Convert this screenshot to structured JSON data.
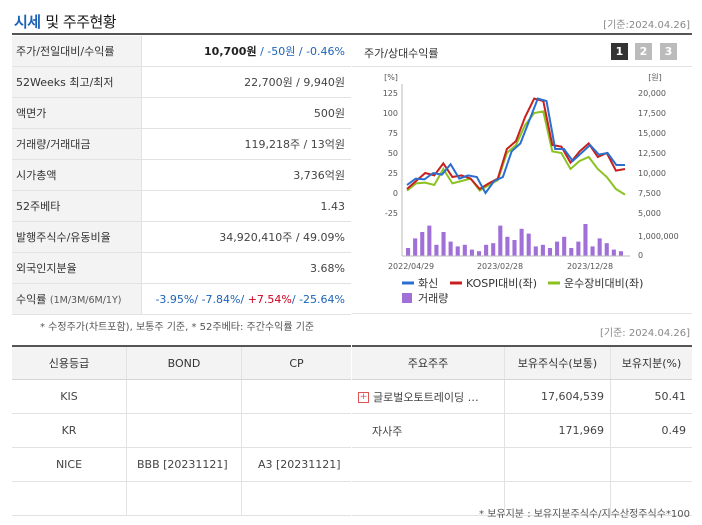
{
  "header": {
    "title_main": "시세",
    "title_rest": "및 주주현황",
    "date": "[기준:2024.04.26]"
  },
  "quote_table": [
    {
      "label": "주가/전일대비/수익률",
      "value_main": "10,700원",
      "value_change": " / -50원 / -0.46%"
    },
    {
      "label": "52Weeks 최고/최저",
      "value": "22,700원 / 9,940원"
    },
    {
      "label": "액면가",
      "value": "500원"
    },
    {
      "label": "거래량/거래대금",
      "value": "119,218주 / 13억원"
    },
    {
      "label": "시가총액",
      "value": "3,736억원"
    },
    {
      "label": "52주베타",
      "value": "1.43"
    },
    {
      "label": "발행주식수/유동비율",
      "value": "34,920,410주 / 49.09%"
    },
    {
      "label": "외국인지분율",
      "value": "3.68%"
    },
    {
      "label": "수익률",
      "label_small": "(1M/3M/6M/1Y)",
      "r1": "-3.95%",
      "r2": "-7.84%",
      "r3": "+7.54%",
      "r4": "-25.64%"
    }
  ],
  "note_left": "* 수정주가(차트포함), 보통주 기준, * 52주베타: 주간수익률 기준",
  "chart_panel": {
    "title": "주가/상대수익률",
    "pages": [
      "1",
      "2",
      "3"
    ],
    "active_page": "1"
  },
  "chart_data": {
    "type": "line",
    "left_unit": "[%]",
    "right_unit": "[원]",
    "left_ticks": [
      "125",
      "100",
      "75",
      "50",
      "25",
      "0",
      "-25"
    ],
    "right_ticks": [
      "20,000",
      "17,500",
      "15,000",
      "12,500",
      "10,000",
      "7,500",
      "5,000"
    ],
    "volume_tick": "1,000,000",
    "volume_zero": "0",
    "x_labels": [
      "2022/04/29",
      "2023/02/28",
      "2023/12/28"
    ],
    "ylim_left": [
      -25,
      125
    ],
    "series": [
      {
        "name": "화신",
        "color": "#2a6fcf",
        "values": [
          10,
          18,
          17,
          25,
          23,
          36,
          18,
          22,
          20,
          0,
          15,
          20,
          52,
          62,
          90,
          118,
          115,
          55,
          55,
          40,
          50,
          60,
          48,
          50,
          35,
          35
        ]
      },
      {
        "name": "KOSPI대비(좌)",
        "color": "#c8201e",
        "values": [
          5,
          15,
          25,
          22,
          37,
          20,
          22,
          18,
          5,
          12,
          18,
          55,
          65,
          95,
          118,
          115,
          60,
          58,
          38,
          52,
          62,
          45,
          50,
          28,
          30
        ]
      },
      {
        "name": "운수장비대비(좌)",
        "color": "#8bc220",
        "values": [
          3,
          12,
          13,
          10,
          30,
          12,
          15,
          18,
          3,
          10,
          16,
          50,
          60,
          85,
          100,
          102,
          52,
          50,
          30,
          40,
          45,
          30,
          20,
          5,
          -2
        ]
      }
    ],
    "volume": {
      "name": "거래량",
      "color": "#a070d8",
      "values": [
        0.25,
        0.55,
        0.75,
        0.95,
        0.35,
        0.75,
        0.45,
        0.3,
        0.35,
        0.2,
        0.15,
        0.35,
        0.4,
        0.95,
        0.6,
        0.5,
        0.85,
        0.7,
        0.3,
        0.35,
        0.25,
        0.45,
        0.6,
        0.25,
        0.45,
        1.0,
        0.3,
        0.55,
        0.4,
        0.2,
        0.15
      ]
    }
  },
  "date2": "[기준: 2024.04.26]",
  "credit_table": {
    "headers": [
      "신용등급",
      "BOND",
      "CP"
    ],
    "rows": [
      [
        "KIS",
        "",
        ""
      ],
      [
        "KR",
        "",
        ""
      ],
      [
        "NICE",
        "BBB [20231121]",
        "A3 [20231121]"
      ],
      [
        "",
        "",
        ""
      ]
    ]
  },
  "holder_table": {
    "headers": [
      "주요주주",
      "보유주식수(보통)",
      "보유지분(%)"
    ],
    "rows": [
      [
        "글로벌오토트레이딩 …",
        "17,604,539",
        "50.41"
      ],
      [
        "자사주",
        "171,969",
        "0.49"
      ],
      [
        "",
        "",
        ""
      ],
      [
        "",
        "",
        ""
      ]
    ]
  },
  "note_right": "* 보유지분 : 보유지분주식수/지수산정주식수*100"
}
